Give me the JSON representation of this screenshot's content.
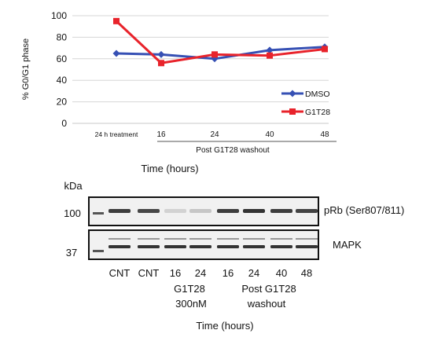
{
  "chart_data": {
    "type": "line",
    "ylabel": "% G0/G1 phase",
    "xlabel": "Time (hours)",
    "ylim": [
      0,
      100
    ],
    "yticks": [
      0,
      20,
      40,
      60,
      80,
      100
    ],
    "categories": [
      "24 h treatment",
      "16",
      "24",
      "40",
      "48"
    ],
    "group_label": "Post G1T28 washout",
    "legend_position": "inside-bottom-right",
    "series": [
      {
        "name": "DMSO",
        "color": "#3650b4",
        "marker": "diamond",
        "values": [
          65,
          64,
          60,
          68,
          71
        ]
      },
      {
        "name": "G1T28",
        "color": "#e8232b",
        "marker": "square",
        "values": [
          95,
          56,
          64,
          63,
          69
        ]
      }
    ]
  },
  "western_blot": {
    "kda_label": "kDa",
    "marker_top": "100",
    "marker_bottom": "37",
    "band_top_label": "pRb (Ser807/811)",
    "band_bottom_label": "MAPK",
    "lanes": [
      "CNT",
      "CNT",
      "16",
      "24",
      "16",
      "24",
      "40",
      "48"
    ],
    "pRb_intensity": [
      0.85,
      0.8,
      0.12,
      0.18,
      0.85,
      0.9,
      0.85,
      0.82
    ],
    "mapk_intensity": [
      0.9,
      0.9,
      0.9,
      0.9,
      0.9,
      0.9,
      0.9,
      0.9
    ],
    "group1_line1": "G1T28",
    "group1_line2": "300nM",
    "group2_line1": "Post G1T28",
    "group2_line2": "washout",
    "xlabel": "Time (hours)"
  }
}
